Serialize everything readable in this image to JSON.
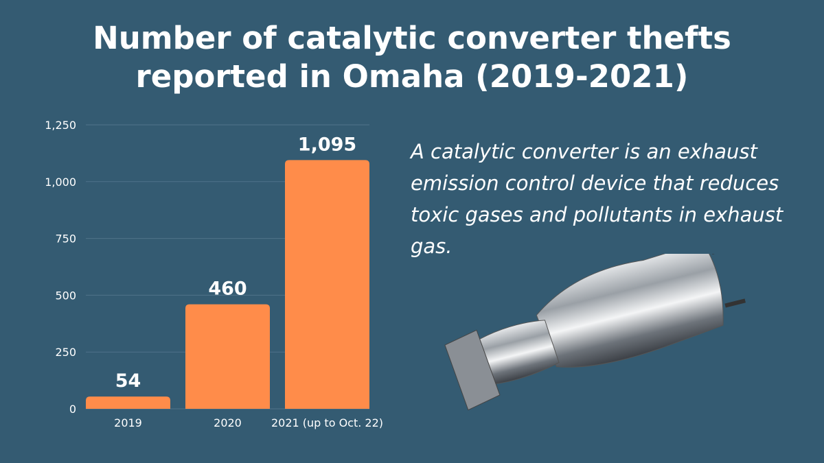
{
  "title": {
    "line1": "Number of catalytic converter thefts",
    "line2": "reported in Omaha (2019-2021)"
  },
  "description": "A catalytic converter is an exhaust emission control device that reduces toxic gases and pollutants in exhaust gas.",
  "image": {
    "icon": "catalytic-converter-photo"
  },
  "colors": {
    "background": "#345b72",
    "bar": "#ff8c4a",
    "grid": "#4f7389",
    "text": "#ffffff"
  },
  "chart_data": {
    "type": "bar",
    "title": "Number of catalytic converter thefts reported in Omaha (2019-2021)",
    "categories": [
      "2019",
      "2020",
      "2021 (up to Oct. 22)"
    ],
    "values": [
      54,
      460,
      1095
    ],
    "data_labels": [
      "54",
      "460",
      "1,095"
    ],
    "xlabel": "",
    "ylabel": "",
    "ylim": [
      0,
      1250
    ],
    "yticks": [
      0,
      250,
      500,
      750,
      1000,
      1250
    ],
    "ytick_labels": [
      "0",
      "250",
      "500",
      "750",
      "1,000",
      "1,250"
    ],
    "grid": true,
    "legend": "none"
  }
}
